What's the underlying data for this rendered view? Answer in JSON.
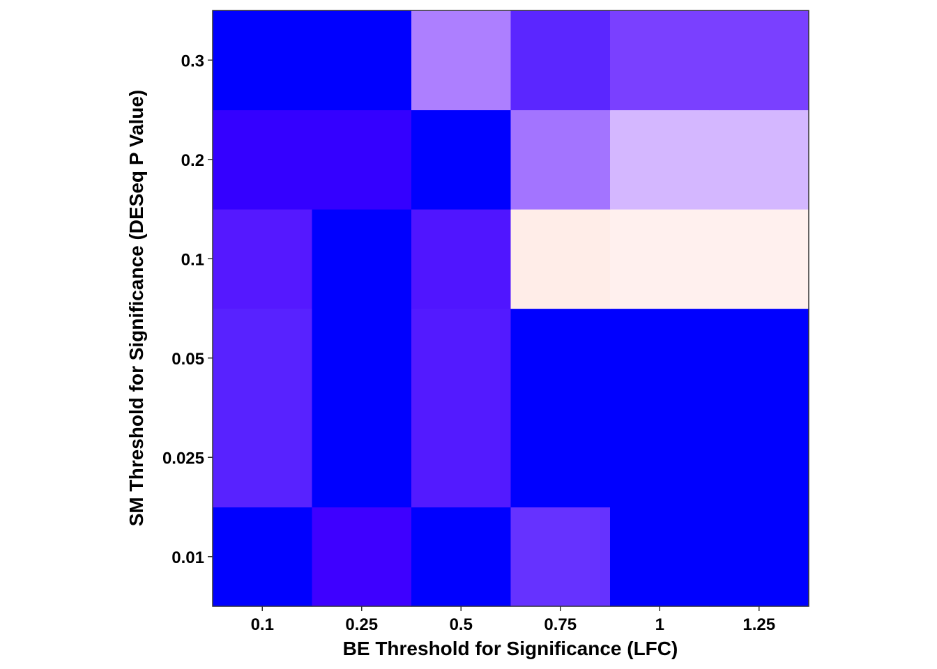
{
  "chart_data": {
    "type": "heatmap",
    "title": "",
    "xlabel": "BE Threshold for Significance (LFC)",
    "ylabel": "SM Threshold for Significance (DESeq P Value)",
    "x_categories": [
      "0.1",
      "0.25",
      "0.5",
      "0.75",
      "1",
      "1.25"
    ],
    "y_categories": [
      "0.01",
      "0.025",
      "0.05",
      "0.1",
      "0.2",
      "0.3"
    ],
    "cell_colors": [
      [
        "#0000ff",
        "#3e00ff",
        "#0000ff",
        "#6632ff",
        "#0000ff",
        "#0000ff"
      ],
      [
        "#5822ff",
        "#0000ff",
        "#531aff",
        "#0000ff",
        "#0000ff",
        "#0000ff"
      ],
      [
        "#5822ff",
        "#0000ff",
        "#531aff",
        "#0000ff",
        "#0000ff",
        "#0000ff"
      ],
      [
        "#5518ff",
        "#0000ff",
        "#5015ff",
        "#ffede8",
        "#fff0ee",
        "#fff0ee"
      ],
      [
        "#3400ff",
        "#3400ff",
        "#0000ff",
        "#a374ff",
        "#d4b7ff",
        "#d4b7ff"
      ],
      [
        "#0000ff",
        "#0000ff",
        "#ad7fff",
        "#5b26ff",
        "#7a40ff",
        "#7a40ff"
      ]
    ],
    "legend": "none",
    "grid": false
  }
}
